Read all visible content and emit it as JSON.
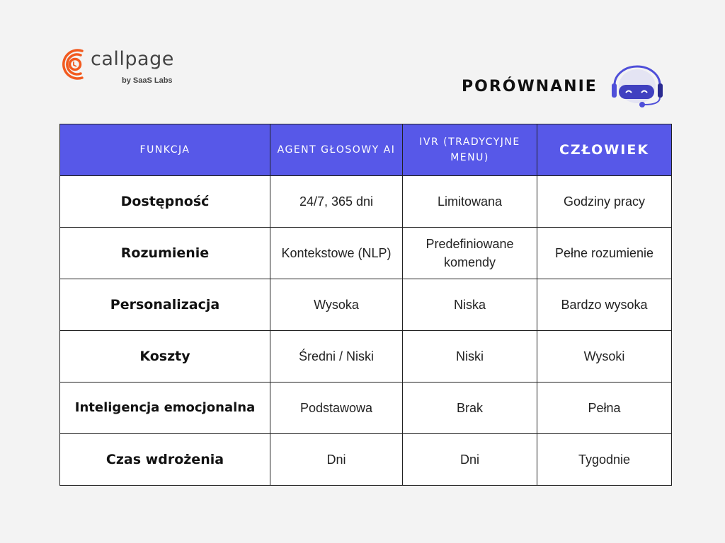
{
  "logo": {
    "name": "callpage",
    "sub": "by SaaS Labs",
    "color": "#f25a1f"
  },
  "title": "PORÓWNANIE",
  "colors": {
    "header": "#5758e8",
    "robot": "#4f4fd9"
  },
  "table": {
    "headers": [
      "FUNKCJA",
      "AGENT GŁOSOWY AI",
      "IVR (TRADYCYJNE MENU)",
      "CZŁOWIEK"
    ],
    "rows": [
      [
        "Dostępność",
        "24/7, 365 dni",
        "Limitowana",
        "Godziny pracy"
      ],
      [
        "Rozumienie",
        "Kontekstowe (NLP)",
        "Predefiniowane komendy",
        "Pełne rozumienie"
      ],
      [
        "Personalizacja",
        "Wysoka",
        "Niska",
        "Bardzo wysoka"
      ],
      [
        "Koszty",
        "Średni / Niski",
        "Niski",
        "Wysoki"
      ],
      [
        "Inteligencja emocjonalna",
        "Podstawowa",
        "Brak",
        "Pełna"
      ],
      [
        "Czas wdrożenia",
        "Dni",
        "Dni",
        "Tygodnie"
      ]
    ]
  }
}
